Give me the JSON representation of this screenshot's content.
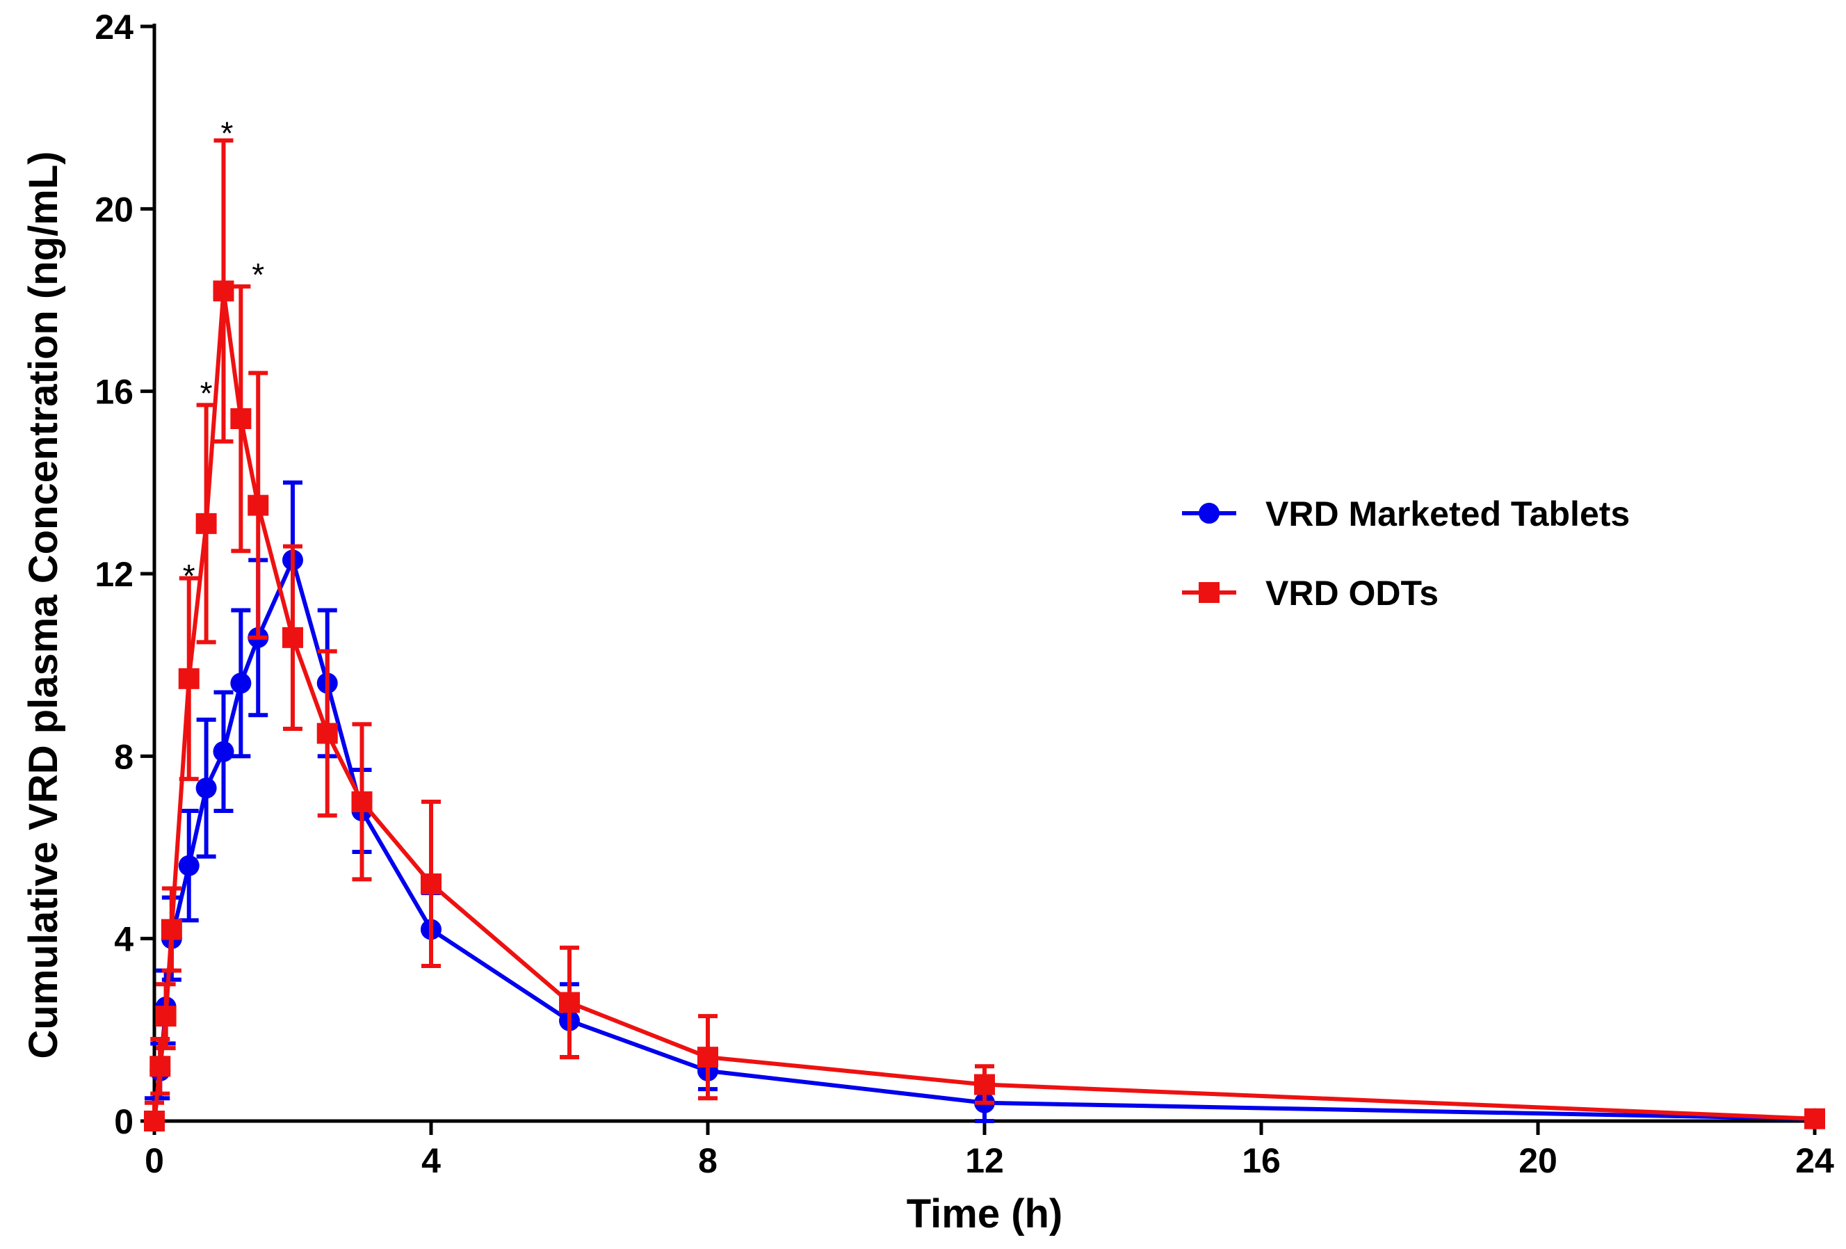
{
  "chart_data": {
    "type": "line",
    "title": "",
    "xlabel": "Time (h)",
    "ylabel": "Cumulative VRD plasma Concentration (ng/mL)",
    "xlim": [
      0,
      24
    ],
    "ylim": [
      0,
      24
    ],
    "xticks": [
      0,
      4,
      8,
      12,
      16,
      20,
      24
    ],
    "yticks": [
      0,
      4,
      8,
      12,
      16,
      20,
      24
    ],
    "xtick_labels": [
      "0",
      "4",
      "8",
      "12",
      "16",
      "20",
      "24"
    ],
    "ytick_labels": [
      "0",
      "4",
      "8",
      "12",
      "16",
      "20",
      "24"
    ],
    "grid": false,
    "legend_position": "right-middle",
    "series": [
      {
        "name": "VRD Marketed Tablets",
        "color": "#0000ee",
        "marker": "circle",
        "x": [
          0,
          0.083,
          0.167,
          0.25,
          0.5,
          0.75,
          1,
          1.25,
          1.5,
          2,
          2.5,
          3,
          4,
          6,
          8,
          12,
          24
        ],
        "y": [
          0,
          1.1,
          2.5,
          4.0,
          5.6,
          7.3,
          8.1,
          9.6,
          10.6,
          12.3,
          9.6,
          6.8,
          4.2,
          2.2,
          1.1,
          0.4,
          0.05
        ],
        "err": [
          0.5,
          0.6,
          0.8,
          0.9,
          1.2,
          1.5,
          1.3,
          1.6,
          1.7,
          1.7,
          1.6,
          0.9,
          0.8,
          0.8,
          0.4,
          0.4,
          0.1
        ]
      },
      {
        "name": "VRD ODTs",
        "color": "#ee1111",
        "marker": "square",
        "x": [
          0,
          0.083,
          0.167,
          0.25,
          0.5,
          0.75,
          1,
          1.25,
          1.5,
          2,
          2.5,
          3,
          4,
          6,
          8,
          12,
          24
        ],
        "y": [
          0,
          1.2,
          2.3,
          4.2,
          9.7,
          13.1,
          18.2,
          15.4,
          13.5,
          10.6,
          8.5,
          7.0,
          5.2,
          2.6,
          1.4,
          0.8,
          0.05
        ],
        "err": [
          0.4,
          0.6,
          0.7,
          0.9,
          2.2,
          2.6,
          3.3,
          2.9,
          2.9,
          2.0,
          1.8,
          1.7,
          1.8,
          1.2,
          0.9,
          0.4,
          0.1
        ]
      }
    ],
    "annotations": [
      {
        "text": "*",
        "x": 0.5,
        "y": 12.2
      },
      {
        "text": "*",
        "x": 0.75,
        "y": 16.2
      },
      {
        "text": "*",
        "x": 1.05,
        "y": 21.9
      },
      {
        "text": "*",
        "x": 1.5,
        "y": 18.8
      }
    ]
  }
}
